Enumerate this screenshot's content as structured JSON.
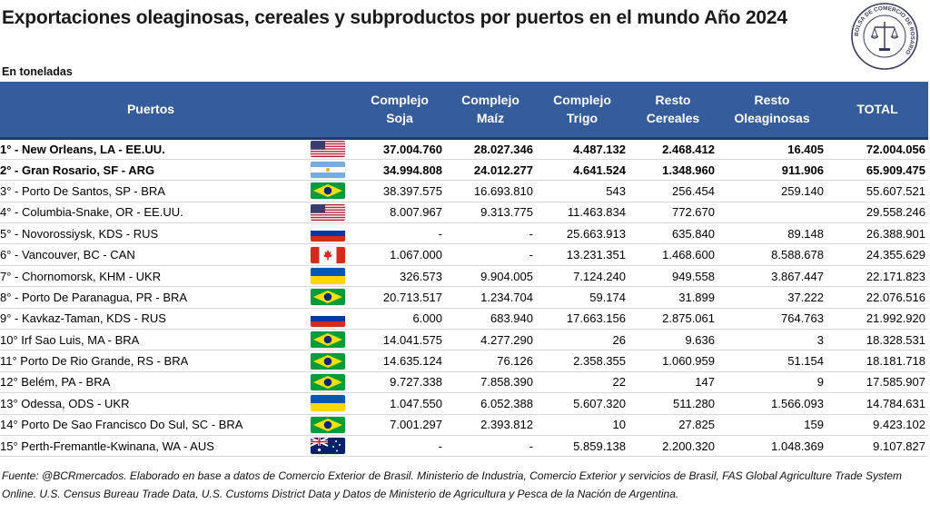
{
  "header": {
    "title": "Exportaciones oleaginosas, cereales y subproductos por puertos en el mundo Año 2024",
    "subtitle": "En toneladas",
    "seal_text": "BOLSA DE COMERCIO DE ROSARIO"
  },
  "table": {
    "columns": [
      "Puertos",
      "",
      "Complejo Soja",
      "Complejo Maíz",
      "Complejo Trigo",
      "Resto Cereales",
      "Resto Oleaginosas",
      "TOTAL"
    ],
    "rows": [
      {
        "port": "1° - New Orleans,  LA - EE.UU.",
        "flag": "usa-flag-icon",
        "soja": "37.004.760",
        "maiz": "28.027.346",
        "trigo": "4.487.132",
        "cereales": "2.468.412",
        "oleaginosas": "16.405",
        "total": "72.004.056"
      },
      {
        "port": "2° - Gran Rosario, SF - ARG",
        "flag": "argentina-flag-icon",
        "soja": "34.994.808",
        "maiz": "24.012.277",
        "trigo": "4.641.524",
        "cereales": "1.348.960",
        "oleaginosas": "911.906",
        "total": "65.909.475"
      },
      {
        "port": "3° - Porto De Santos, SP - BRA",
        "flag": "brazil-flag-icon",
        "soja": "38.397.575",
        "maiz": "16.693.810",
        "trigo": "543",
        "cereales": "256.454",
        "oleaginosas": "259.140",
        "total": "55.607.521"
      },
      {
        "port": "4° - Columbia-Snake,  OR - EE.UU.",
        "flag": "usa-flag-icon",
        "soja": "8.007.967",
        "maiz": "9.313.775",
        "trigo": "11.463.834",
        "cereales": "772.670",
        "oleaginosas": "",
        "total": "29.558.246"
      },
      {
        "port": "5° - Novorossiysk, KDS - RUS",
        "flag": "russia-flag-icon",
        "soja": "-",
        "maiz": "-",
        "trigo": "25.663.913",
        "cereales": "635.840",
        "oleaginosas": "89.148",
        "total": "26.388.901"
      },
      {
        "port": "6° - Vancouver, BC - CAN",
        "flag": "canada-flag-icon",
        "soja": "1.067.000",
        "maiz": "-",
        "trigo": "13.231.351",
        "cereales": "1.468.600",
        "oleaginosas": "8.588.678",
        "total": "24.355.629"
      },
      {
        "port": "7° - Chornomorsk, KHM - UKR",
        "flag": "ukraine-flag-icon",
        "soja": "326.573",
        "maiz": "9.904.005",
        "trigo": "7.124.240",
        "cereales": "949.558",
        "oleaginosas": "3.867.447",
        "total": "22.171.823"
      },
      {
        "port": "8° - Porto De Paranagua, PR - BRA",
        "flag": "brazil-flag-icon",
        "soja": "20.713.517",
        "maiz": "1.234.704",
        "trigo": "59.174",
        "cereales": "31.899",
        "oleaginosas": "37.222",
        "total": "22.076.516"
      },
      {
        "port": "9° - Kavkaz-Taman, KDS - RUS",
        "flag": "russia-flag-icon",
        "soja": "6.000",
        "maiz": "683.940",
        "trigo": "17.663.156",
        "cereales": "2.875.061",
        "oleaginosas": "764.763",
        "total": "21.992.920"
      },
      {
        "port": "10° Irf Sao Luis, MA - BRA",
        "flag": "brazil-flag-icon",
        "soja": "14.041.575",
        "maiz": "4.277.290",
        "trigo": "26",
        "cereales": "9.636",
        "oleaginosas": "3",
        "total": "18.328.531"
      },
      {
        "port": "11° Porto De Rio Grande, RS - BRA",
        "flag": "brazil-flag-icon",
        "soja": "14.635.124",
        "maiz": "76.126",
        "trigo": "2.358.355",
        "cereales": "1.060.959",
        "oleaginosas": "51.154",
        "total": "18.181.718"
      },
      {
        "port": "12° Belém, PA - BRA",
        "flag": "brazil-flag-icon",
        "soja": "9.727.338",
        "maiz": "7.858.390",
        "trigo": "22",
        "cereales": "147",
        "oleaginosas": "9",
        "total": "17.585.907"
      },
      {
        "port": "13° Odessa, ODS - UKR",
        "flag": "ukraine-flag-icon",
        "soja": "1.047.550",
        "maiz": "6.052.388",
        "trigo": "5.607.320",
        "cereales": "511.280",
        "oleaginosas": "1.566.093",
        "total": "14.784.631"
      },
      {
        "port": "14° Porto De Sao Francisco Do Sul, SC - BRA",
        "flag": "brazil-flag-icon",
        "soja": "7.001.297",
        "maiz": "2.393.812",
        "trigo": "10",
        "cereales": "27.825",
        "oleaginosas": "159",
        "total": "9.423.102"
      },
      {
        "port": "15° Perth-Fremantle-Kwinana, WA - AUS",
        "flag": "australia-flag-icon",
        "soja": "-",
        "maiz": "-",
        "trigo": "5.859.138",
        "cereales": "2.200.320",
        "oleaginosas": "1.048.369",
        "total": "9.107.827"
      }
    ]
  },
  "footer": {
    "source": "Fuente: @BCRmercados. Elaborado en base a datos de Comercio Exterior de Brasil. Ministerio de Industria, Comercio Exterior y servicios de Brasil, FAS Global Agriculture Trade System Online. U.S. Census Bureau Trade Data, U.S. Customs District Data y Datos de Ministerio de Agricultura y Pesca de la Nación de Argentina."
  },
  "colors": {
    "header_bg": "#355c9b",
    "header_text": "#ffffff"
  }
}
